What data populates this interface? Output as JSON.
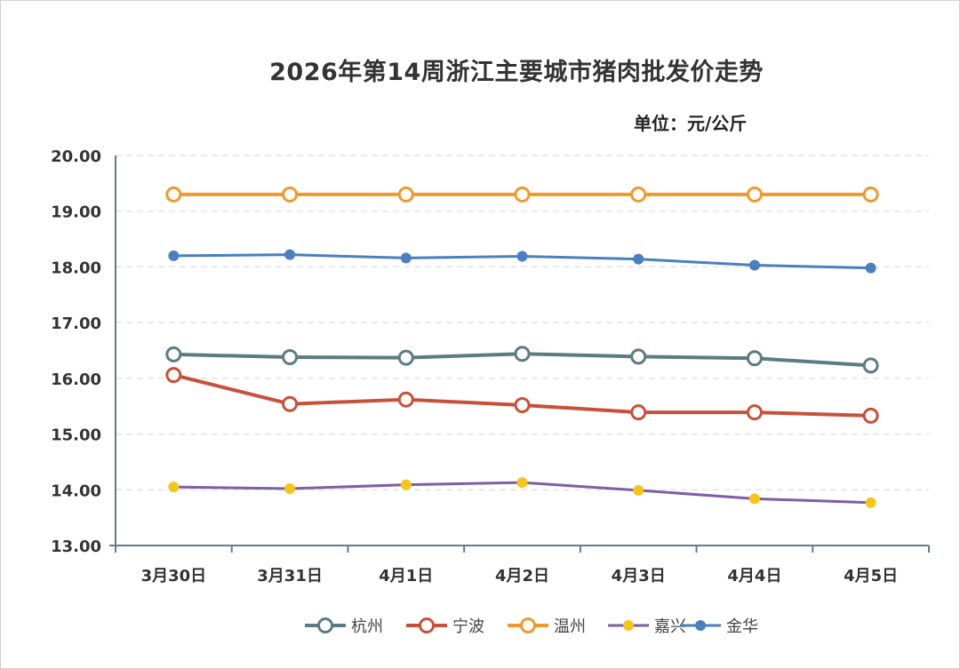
{
  "chart_data": {
    "type": "line",
    "title": "2026年第14周浙江主要城市猪肉批发价走势",
    "unit_label": "单位：元/公斤",
    "categories": [
      "3月30日",
      "3月31日",
      "4月1日",
      "4月2日",
      "4月3日",
      "4月4日",
      "4月5日"
    ],
    "ylim": [
      13.0,
      20.0
    ],
    "yticks": [
      "13.00",
      "14.00",
      "15.00",
      "16.00",
      "17.00",
      "18.00",
      "19.00",
      "20.00"
    ],
    "grid": true,
    "legend_position": "bottom",
    "series": [
      {
        "name": "杭州",
        "color": "#5b7b85",
        "marker": "hollow-large",
        "values": [
          16.43,
          16.38,
          16.37,
          16.44,
          16.39,
          16.36,
          16.23
        ]
      },
      {
        "name": "宁波",
        "color": "#c8503a",
        "marker": "hollow-large",
        "values": [
          16.06,
          15.54,
          15.62,
          15.52,
          15.39,
          15.39,
          15.33
        ]
      },
      {
        "name": "温州",
        "color": "#f0992b",
        "marker": "hollow-large",
        "values": [
          19.3,
          19.3,
          19.3,
          19.3,
          19.3,
          19.3,
          19.3
        ]
      },
      {
        "name": "嘉兴",
        "color": "#7e5ea5",
        "marker": "dot-yellow",
        "values": [
          14.05,
          14.02,
          14.09,
          14.13,
          13.99,
          13.84,
          13.77
        ]
      },
      {
        "name": "金华",
        "color": "#4a7fc0",
        "marker": "dot-solid",
        "values": [
          18.2,
          18.22,
          18.16,
          18.19,
          18.14,
          18.03,
          17.98
        ]
      }
    ]
  }
}
